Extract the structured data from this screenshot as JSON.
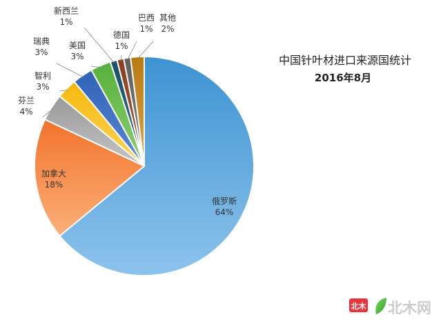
{
  "chart_data": {
    "type": "pie",
    "title": "中国针叶材进口来源国统计",
    "subtitle": "2016年8月",
    "slices": [
      {
        "label": "俄罗斯",
        "value": 64,
        "value_label": "64%",
        "color": "#4a9fd9"
      },
      {
        "label": "加拿大",
        "value": 18,
        "value_label": "18%",
        "color": "#f58a3c"
      },
      {
        "label": "芬兰",
        "value": 4,
        "value_label": "4%",
        "color": "#a6a6a6"
      },
      {
        "label": "智利",
        "value": 3,
        "value_label": "3%",
        "color": "#fcc21a"
      },
      {
        "label": "瑞典",
        "value": 3,
        "value_label": "3%",
        "color": "#3f72c4"
      },
      {
        "label": "美国",
        "value": 3,
        "value_label": "3%",
        "color": "#6cbf4e"
      },
      {
        "label": "新西兰",
        "value": 1,
        "value_label": "1%",
        "color": "#1f5a78"
      },
      {
        "label": "德国",
        "value": 1,
        "value_label": "1%",
        "color": "#9b4a2a"
      },
      {
        "label": "巴西",
        "value": 1,
        "value_label": "1%",
        "color": "#6b6b6b"
      },
      {
        "label": "其他",
        "value": 2,
        "value_label": "2%",
        "color": "#c98a1e"
      }
    ]
  },
  "watermark": {
    "badge_text": "北木",
    "brand_text": "北木网"
  }
}
